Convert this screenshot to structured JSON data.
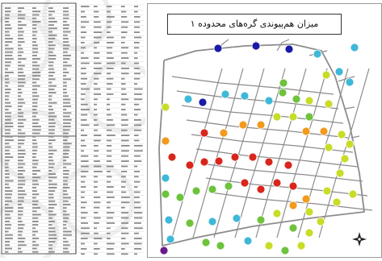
{
  "map": {
    "title": "میزان هم‌پیوندی گره‌های محدوده ۱",
    "north_arrow_icon": "compass-rose-icon",
    "node_colors": {
      "dark_blue": "#1a1aa6",
      "light_blue": "#3fb8d8",
      "green": "#6ec33c",
      "yellow_green": "#c8dc28",
      "orange": "#f29a1e",
      "red": "#d9261c",
      "purple": "#6a1a8a"
    }
  }
}
